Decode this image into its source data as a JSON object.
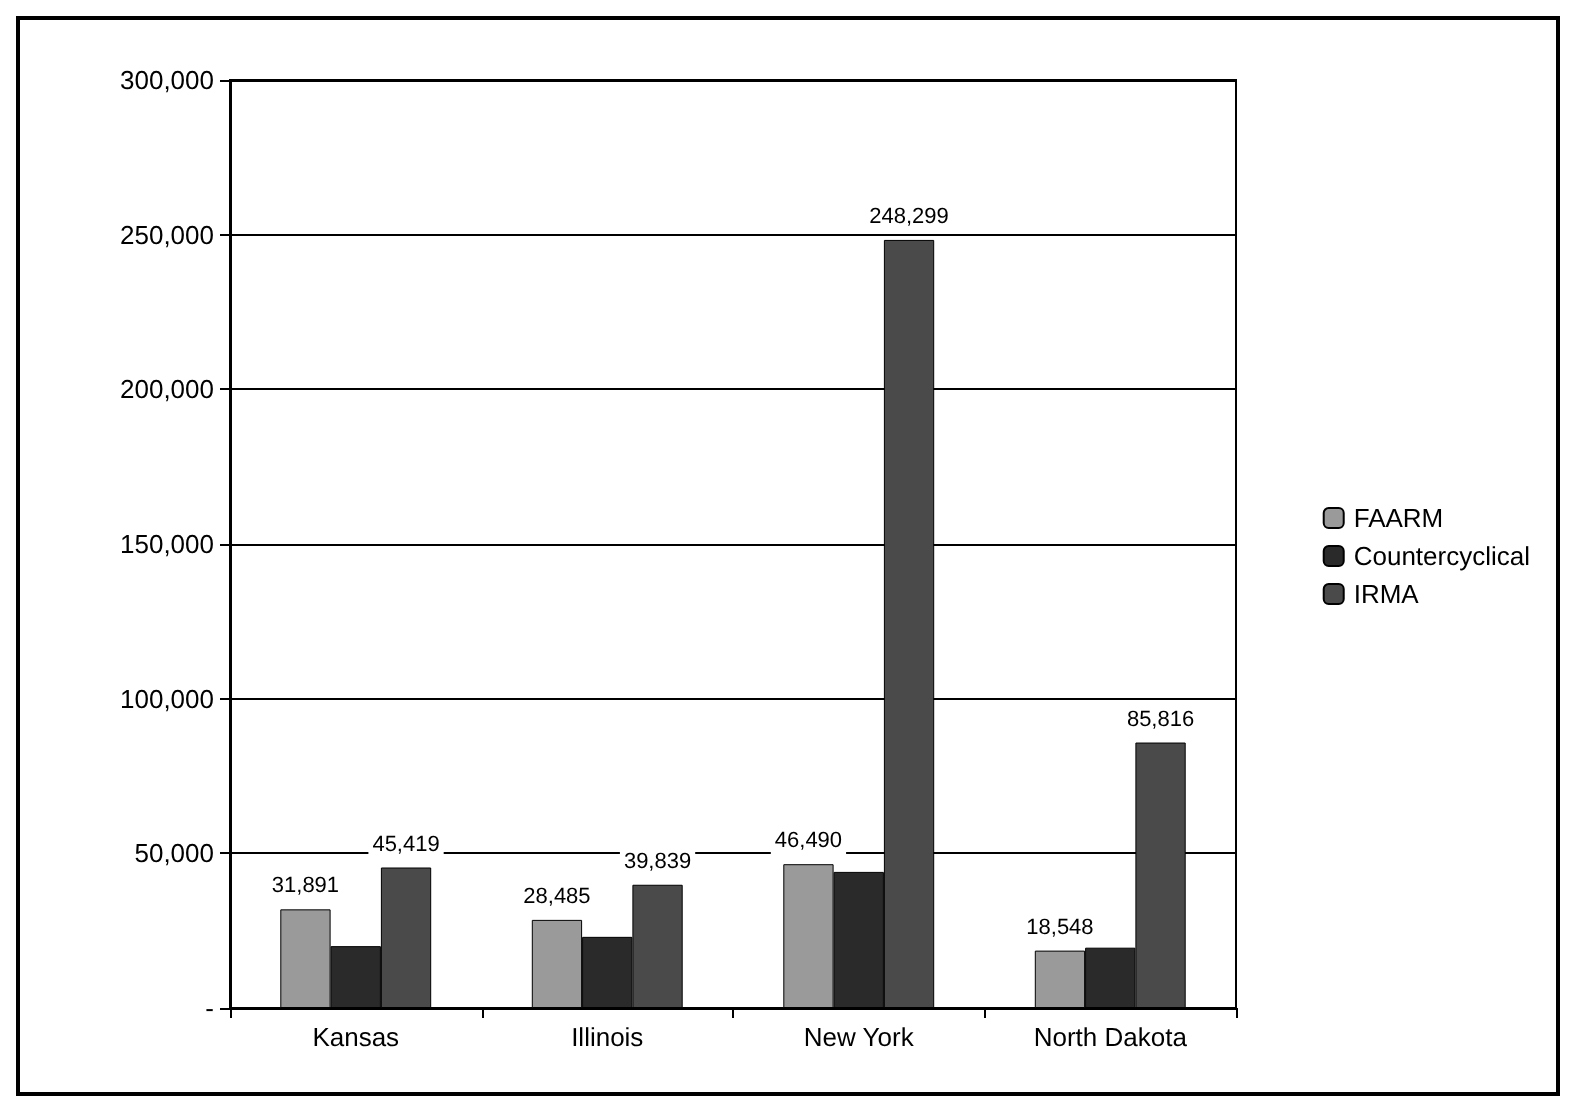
{
  "chart_data": {
    "type": "bar",
    "categories": [
      "Kansas",
      "Illinois",
      "New York",
      "North Dakota"
    ],
    "series": [
      {
        "name": "FAARM",
        "color": "#9a9a9a",
        "values": [
          31891,
          28485,
          46490,
          18548
        ],
        "value_labels": [
          "31,891",
          "28,485",
          "46,490",
          "18,548"
        ]
      },
      {
        "name": "Countercyclical",
        "color": "#2a2a2a",
        "values": [
          20000,
          23000,
          44000,
          19500
        ],
        "value_labels": [
          null,
          null,
          null,
          null
        ]
      },
      {
        "name": "IRMA",
        "color": "#4a4a4a",
        "values": [
          45419,
          39839,
          248299,
          85816
        ],
        "value_labels": [
          "45,419",
          "39,839",
          "248,299",
          "85,816"
        ]
      }
    ],
    "ylim": [
      0,
      300000
    ],
    "yticks": [
      {
        "value": 0,
        "label": "-"
      },
      {
        "value": 50000,
        "label": "50,000"
      },
      {
        "value": 100000,
        "label": "100,000"
      },
      {
        "value": 150000,
        "label": "150,000"
      },
      {
        "value": 200000,
        "label": "200,000"
      },
      {
        "value": 250000,
        "label": "250,000"
      },
      {
        "value": 300000,
        "label": "300,000"
      }
    ],
    "grid": "y",
    "legend": "right"
  }
}
